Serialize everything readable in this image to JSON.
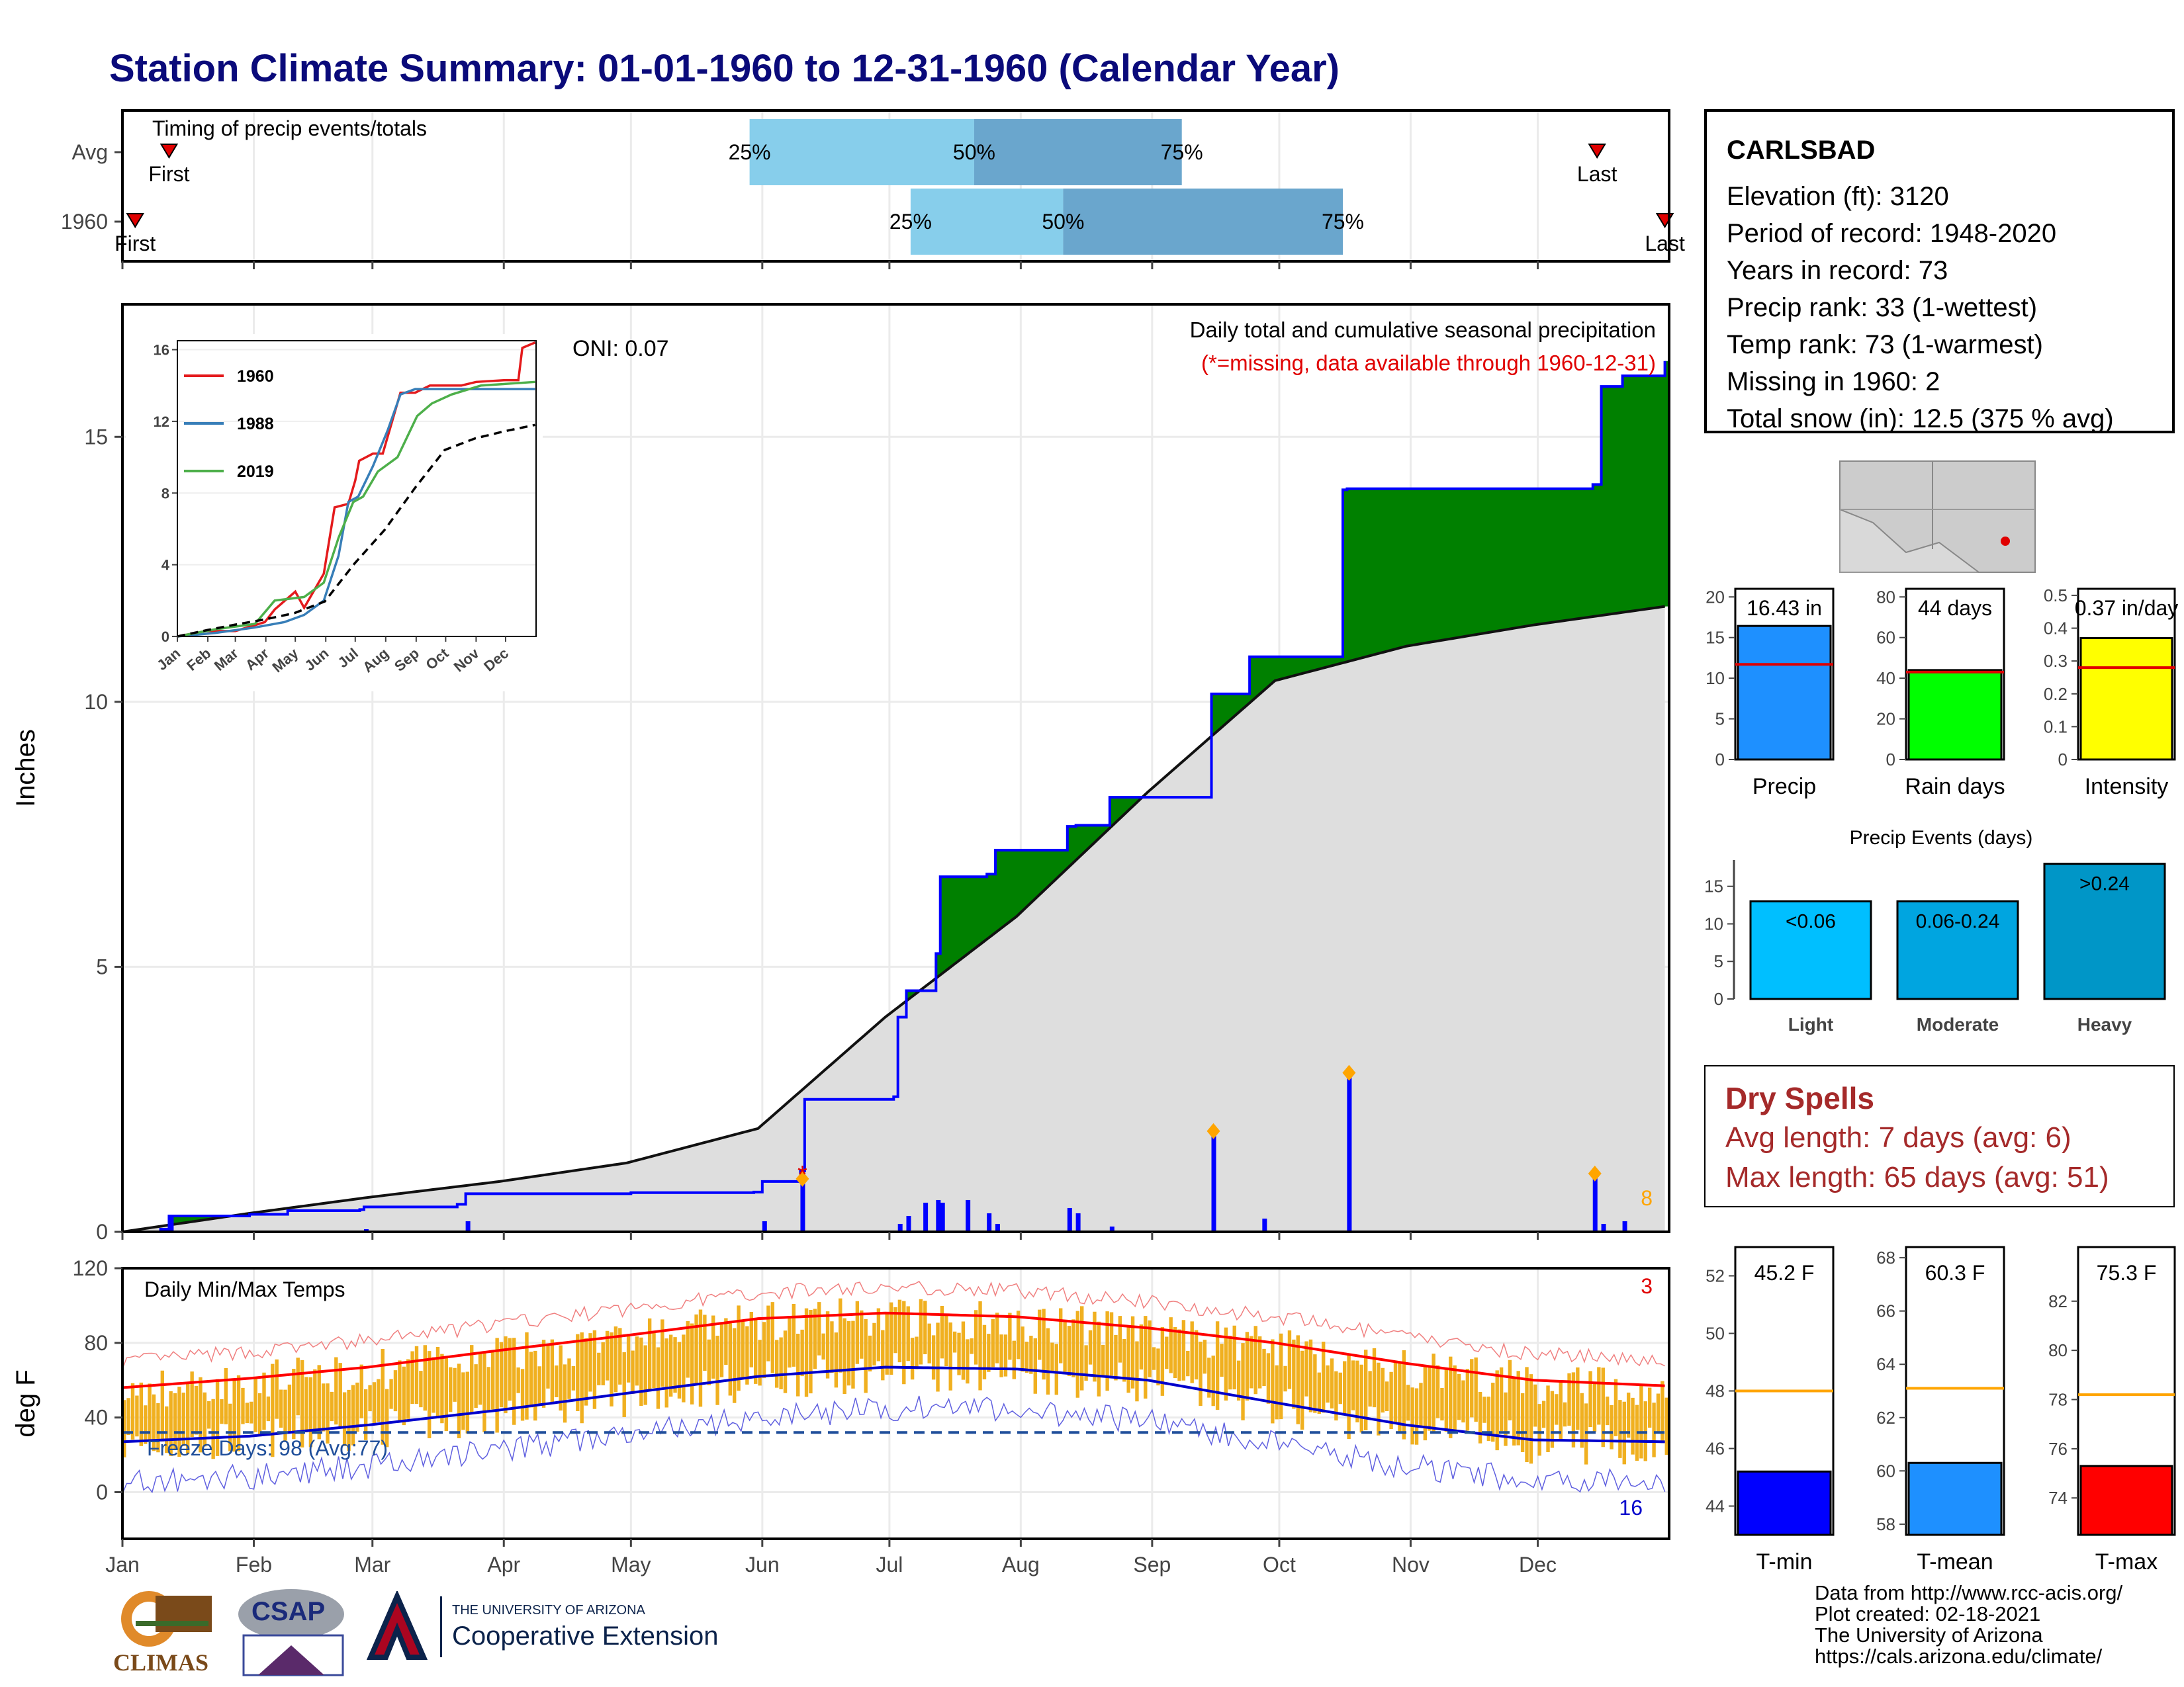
{
  "title": "Station Climate Summary: 01-01-1960 to 12-31-1960 (Calendar Year)",
  "colors": {
    "title": "#0a0a7a",
    "quartile_light": "#87ceeb",
    "quartile_dark": "#6aa6cd",
    "cum_green": "#008000",
    "cum_brown": "#8b5a00",
    "cum_avg": "#dedede",
    "precip_bars": "#0000ff",
    "point_orange": "#ffa500",
    "temp_fill": "#f0b020",
    "tmax_line": "#ff0000",
    "tmin_line": "#0000cc",
    "freeze_line": "#1f4e9a",
    "precip_bar": "#1e90ff",
    "rain_bar": "#00ff00",
    "intensity_bar": "#ffff00",
    "light_bar": "#00bfff",
    "moderate_bar": "#00a5e0",
    "heavy_bar": "#0096c7",
    "tmin_bar": "#0000ff",
    "tmean_bar": "#1e90ff",
    "tmax_bar": "#ff0000",
    "avg_ref": "#ffa500"
  },
  "timing": {
    "label": "Timing of precip events/totals",
    "rows": [
      {
        "name": "Avg",
        "first_label": "First",
        "first_doy": 12,
        "last_label": "Last",
        "last_doy": 349,
        "q25_doy": 149,
        "q50_doy": 202,
        "q75_doy": 251,
        "q25_label": "25%",
        "q50_label": "50%",
        "q75_label": "75%"
      },
      {
        "name": "1960",
        "first_label": "First",
        "first_doy": 4,
        "last_label": "Last",
        "last_doy": 365,
        "q25_doy": 187,
        "q50_doy": 223,
        "q75_doy": 289,
        "q25_label": "25%",
        "q50_label": "50%",
        "q75_label": "75%"
      }
    ]
  },
  "main": {
    "ylabel": "Inches",
    "oni": "ONI: 0.07",
    "legend_title": "Daily total and cumulative seasonal precipitation",
    "legend_note": "(*=missing, data available through 1960-12-31)",
    "extreme_count": "8",
    "ylim": [
      0,
      17.5
    ],
    "yticks": [
      0,
      5,
      10,
      15
    ],
    "month_labels": [
      "Jan",
      "Feb",
      "Mar",
      "Apr",
      "May",
      "Jun",
      "Jul",
      "Aug",
      "Sep",
      "Oct",
      "Nov",
      "Dec"
    ]
  },
  "inset": {
    "series": [
      {
        "name": "1960",
        "color": "#e41a1c"
      },
      {
        "name": "1988",
        "color": "#377eb8"
      },
      {
        "name": "2019",
        "color": "#4daf4a"
      }
    ],
    "yticks": [
      0,
      4,
      8,
      12,
      16
    ],
    "xlabels": [
      "Jan",
      "Feb",
      "Mar",
      "Apr",
      "May",
      "Jun",
      "Jul",
      "Aug",
      "Sep",
      "Oct",
      "Nov",
      "Dec"
    ]
  },
  "station": {
    "name": "CARLSBAD",
    "lines": [
      "Elevation (ft): 3120",
      "Period of record: 1948-2020",
      "Years in record: 73",
      "Precip rank: 33 (1-wettest)",
      "Temp rank: 73 (1-warmest)",
      "Missing in 1960: 2",
      "Total snow (in): 12.5 (375 % avg)"
    ]
  },
  "summary_bars": [
    {
      "name": "Precip",
      "value_label": "16.43 in",
      "value": 16.43,
      "avg": 11.7,
      "ylim": [
        0,
        21
      ],
      "yticks": [
        0,
        5,
        10,
        15,
        20
      ],
      "color_key": "precip_bar"
    },
    {
      "name": "Rain days",
      "value_label": "44 days",
      "value": 44,
      "avg": 43,
      "ylim": [
        0,
        84
      ],
      "yticks": [
        0,
        20,
        40,
        60,
        80
      ],
      "color_key": "rain_bar"
    },
    {
      "name": "Intensity",
      "value_label": "0.37 in/day",
      "value": 0.37,
      "avg": 0.28,
      "ylim": [
        0,
        0.52
      ],
      "yticks": [
        0.0,
        0.1,
        0.2,
        0.3,
        0.4,
        0.5
      ],
      "color_key": "intensity_bar"
    }
  ],
  "precip_events": {
    "title": "Precip Events (days)",
    "ylim": [
      0,
      18.5
    ],
    "yticks": [
      0,
      5,
      10,
      15
    ],
    "bars": [
      {
        "name": "Light",
        "label": "<0.06",
        "value": 13,
        "color_key": "light_bar"
      },
      {
        "name": "Moderate",
        "label": "0.06-0.24",
        "value": 13,
        "color_key": "moderate_bar"
      },
      {
        "name": "Heavy",
        "label": ">0.24",
        "value": 18,
        "color_key": "heavy_bar"
      }
    ]
  },
  "dry_spells": {
    "title": "Dry Spells",
    "avg_line": "Avg length: 7 days (avg: 6)",
    "max_line": "Max length: 65 days (avg: 51)"
  },
  "temps": {
    "ylabel": "deg F",
    "title": "Daily Min/Max Temps",
    "freeze_label": "Freeze Days: 98 (Avg:77)",
    "hot_count": "3",
    "cold_count": "16",
    "ylim": [
      -25,
      120
    ],
    "yticks": [
      0,
      40,
      80,
      120
    ]
  },
  "temp_bars": [
    {
      "name": "T-min",
      "value_label": "45.2 F",
      "value": 45.2,
      "avg": 48.0,
      "ylim": [
        43,
        53
      ],
      "yticks": [
        44,
        46,
        48,
        50,
        52
      ],
      "color_key": "tmin_bar"
    },
    {
      "name": "T-mean",
      "value_label": "60.3 F",
      "value": 60.3,
      "avg": 63.1,
      "ylim": [
        57.6,
        68.4
      ],
      "yticks": [
        58,
        60,
        62,
        64,
        66,
        68
      ],
      "color_key": "tmean_bar"
    },
    {
      "name": "T-max",
      "value_label": "75.3 F",
      "value": 75.3,
      "avg": 78.2,
      "ylim": [
        72.5,
        84.2
      ],
      "yticks": [
        74,
        76,
        78,
        80,
        82
      ],
      "color_key": "tmax_bar"
    }
  ],
  "credits": [
    "Data from http://www.rcc-acis.org/",
    "Plot created: 02-18-2021",
    "The University of Arizona",
    "https://cals.arizona.edu/climate/"
  ],
  "logos": {
    "climas": "CLIMAS",
    "csap": "CSAP",
    "ua_line1": "THE UNIVERSITY OF ARIZONA",
    "ua_line2": "Cooperative Extension"
  },
  "chart_data": [
    {
      "type": "area",
      "title": "Daily total and cumulative seasonal precipitation",
      "ylabel": "Inches",
      "ylim": [
        0,
        17.5
      ],
      "x_unit": "day of year",
      "cumulative_1960": {
        "x": [
          1,
          10,
          12,
          31,
          40,
          57,
          58,
          80,
          82,
          121,
          150,
          152,
          161,
          162,
          183,
          184,
          186,
          193,
          194,
          205,
          207,
          221,
          224,
          226,
          234,
          235,
          258,
          259,
          267,
          268,
          289,
          290,
          348,
          350,
          355,
          365
        ],
        "y": [
          0.0,
          0.05,
          0.3,
          0.33,
          0.4,
          0.42,
          0.47,
          0.52,
          0.72,
          0.74,
          0.75,
          0.95,
          1.15,
          2.5,
          2.55,
          4.05,
          4.55,
          5.25,
          6.7,
          6.75,
          7.2,
          7.2,
          7.65,
          7.67,
          8.2,
          8.2,
          10.15,
          10.15,
          10.85,
          10.85,
          14.0,
          14.02,
          14.1,
          15.95,
          16.15,
          16.43
        ]
      },
      "cumulative_avg": {
        "x": [
          1,
          31,
          59,
          90,
          120,
          151,
          181,
          212,
          243,
          273,
          304,
          334,
          365
        ],
        "y": [
          0.0,
          0.35,
          0.65,
          0.95,
          1.3,
          1.95,
          4.05,
          5.95,
          8.3,
          10.4,
          11.05,
          11.45,
          11.8
        ]
      },
      "daily_totals": {
        "x": [
          10,
          12,
          58,
          82,
          152,
          161,
          184,
          186,
          190,
          193,
          194,
          200,
          205,
          207,
          224,
          226,
          234,
          258,
          270,
          290,
          348,
          350,
          355
        ],
        "y": [
          0.05,
          0.3,
          0.05,
          0.2,
          0.2,
          1.0,
          0.15,
          0.3,
          0.55,
          0.6,
          0.55,
          0.6,
          0.35,
          0.15,
          0.45,
          0.35,
          0.1,
          1.9,
          0.25,
          3.0,
          1.1,
          0.15,
          0.2
        ]
      }
    },
    {
      "type": "line",
      "title": "Daily Min/Max Temps",
      "ylabel": "deg F",
      "ylim": [
        -25,
        120
      ],
      "series": [
        {
          "name": "Tmax normal",
          "x": [
            1,
            31,
            59,
            90,
            120,
            151,
            181,
            212,
            243,
            273,
            304,
            334,
            365
          ],
          "y": [
            56,
            61,
            67,
            76,
            84,
            93,
            96,
            94,
            88,
            80,
            69,
            60,
            57
          ]
        },
        {
          "name": "Tmin normal",
          "x": [
            1,
            31,
            59,
            90,
            120,
            151,
            181,
            212,
            243,
            273,
            304,
            334,
            365
          ],
          "y": [
            27,
            30,
            36,
            44,
            53,
            62,
            67,
            66,
            60,
            48,
            36,
            28,
            27
          ]
        }
      ],
      "freeze_threshold": 32
    },
    {
      "type": "line",
      "title": "",
      "series": [
        {
          "name": "1960",
          "x": [
            1,
            30,
            60,
            90,
            100,
            121,
            130,
            150,
            161,
            175,
            182,
            186,
            200,
            210,
            228,
            243,
            258,
            275,
            290,
            305,
            335,
            348,
            352,
            365
          ],
          "y": [
            0,
            0.3,
            0.3,
            0.8,
            1.5,
            2.5,
            1.6,
            3.5,
            7.2,
            7.4,
            8.7,
            9.8,
            10.2,
            10.2,
            13.6,
            13.6,
            14.0,
            14.0,
            14.0,
            14.2,
            14.3,
            14.3,
            16.1,
            16.4
          ]
        },
        {
          "name": "1988",
          "x": [
            1,
            40,
            80,
            110,
            130,
            150,
            165,
            175,
            185,
            200,
            215,
            228,
            243,
            262,
            300,
            365
          ],
          "y": [
            0,
            0.2,
            0.5,
            0.8,
            1.2,
            2.0,
            4.5,
            7.5,
            7.8,
            9.5,
            11.5,
            13.5,
            13.8,
            13.8,
            13.8,
            13.8
          ]
        },
        {
          "name": "2019",
          "x": [
            1,
            40,
            80,
            100,
            130,
            150,
            165,
            180,
            190,
            205,
            225,
            245,
            260,
            280,
            310,
            365
          ],
          "y": [
            0,
            0.4,
            0.7,
            2.0,
            2.2,
            3.0,
            5.5,
            7.5,
            7.8,
            9.2,
            10.0,
            12.3,
            13.0,
            13.5,
            14.0,
            14.2
          ]
        },
        {
          "name": "Average",
          "x": [
            1,
            31,
            59,
            90,
            120,
            151,
            181,
            212,
            243,
            273,
            304,
            334,
            365
          ],
          "y": [
            0,
            0.35,
            0.65,
            0.95,
            1.3,
            1.95,
            4.05,
            5.95,
            8.3,
            10.4,
            11.05,
            11.45,
            11.8
          ]
        }
      ],
      "ylim": [
        0,
        16.5
      ]
    },
    {
      "type": "bar",
      "title": "Precip Events (days)",
      "categories": [
        "Light",
        "Moderate",
        "Heavy"
      ],
      "values": [
        13,
        13,
        18
      ]
    },
    {
      "type": "bar",
      "categories": [
        "Precip",
        "Rain days",
        "Intensity",
        "T-min",
        "T-mean",
        "T-max"
      ],
      "values": [
        16.43,
        44,
        0.37,
        45.2,
        60.3,
        75.3
      ]
    }
  ]
}
